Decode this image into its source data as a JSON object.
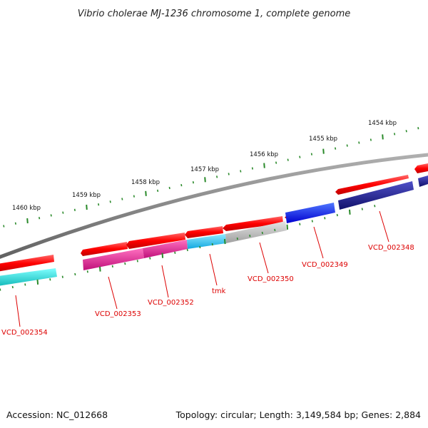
{
  "title": "Vibrio cholerae MJ-1236 chromosome 1, complete genome",
  "accession": "Accession: NC_012668",
  "summary": "Topology: circular; Length: 3,149,584 bp; Genes: 2,884",
  "ruler_labels": [
    "1460 kbp",
    "1459 kbp",
    "1458 kbp",
    "1457 kbp",
    "1456 kbp",
    "1455 kbp",
    "1454 kbp"
  ],
  "gene_labels": [
    "VCD_002354",
    "VCD_002353",
    "VCD_002352",
    "tmk",
    "VCD_002350",
    "VCD_002349",
    "VCD_002348"
  ],
  "colors": {
    "cds": "#ff0000",
    "backbone": "#808080",
    "tick": "#2a8a2a",
    "label": "#dd0000",
    "VCD_002354": "#20c8c8",
    "VCD_002353": "#e0208c",
    "VCD_002352": "#e0208c",
    "tmk": "#20c0f0",
    "VCD_002350": "#b8b8b8",
    "VCD_002349": "#0000ff",
    "VCD_002348": "#1a1a8c"
  }
}
